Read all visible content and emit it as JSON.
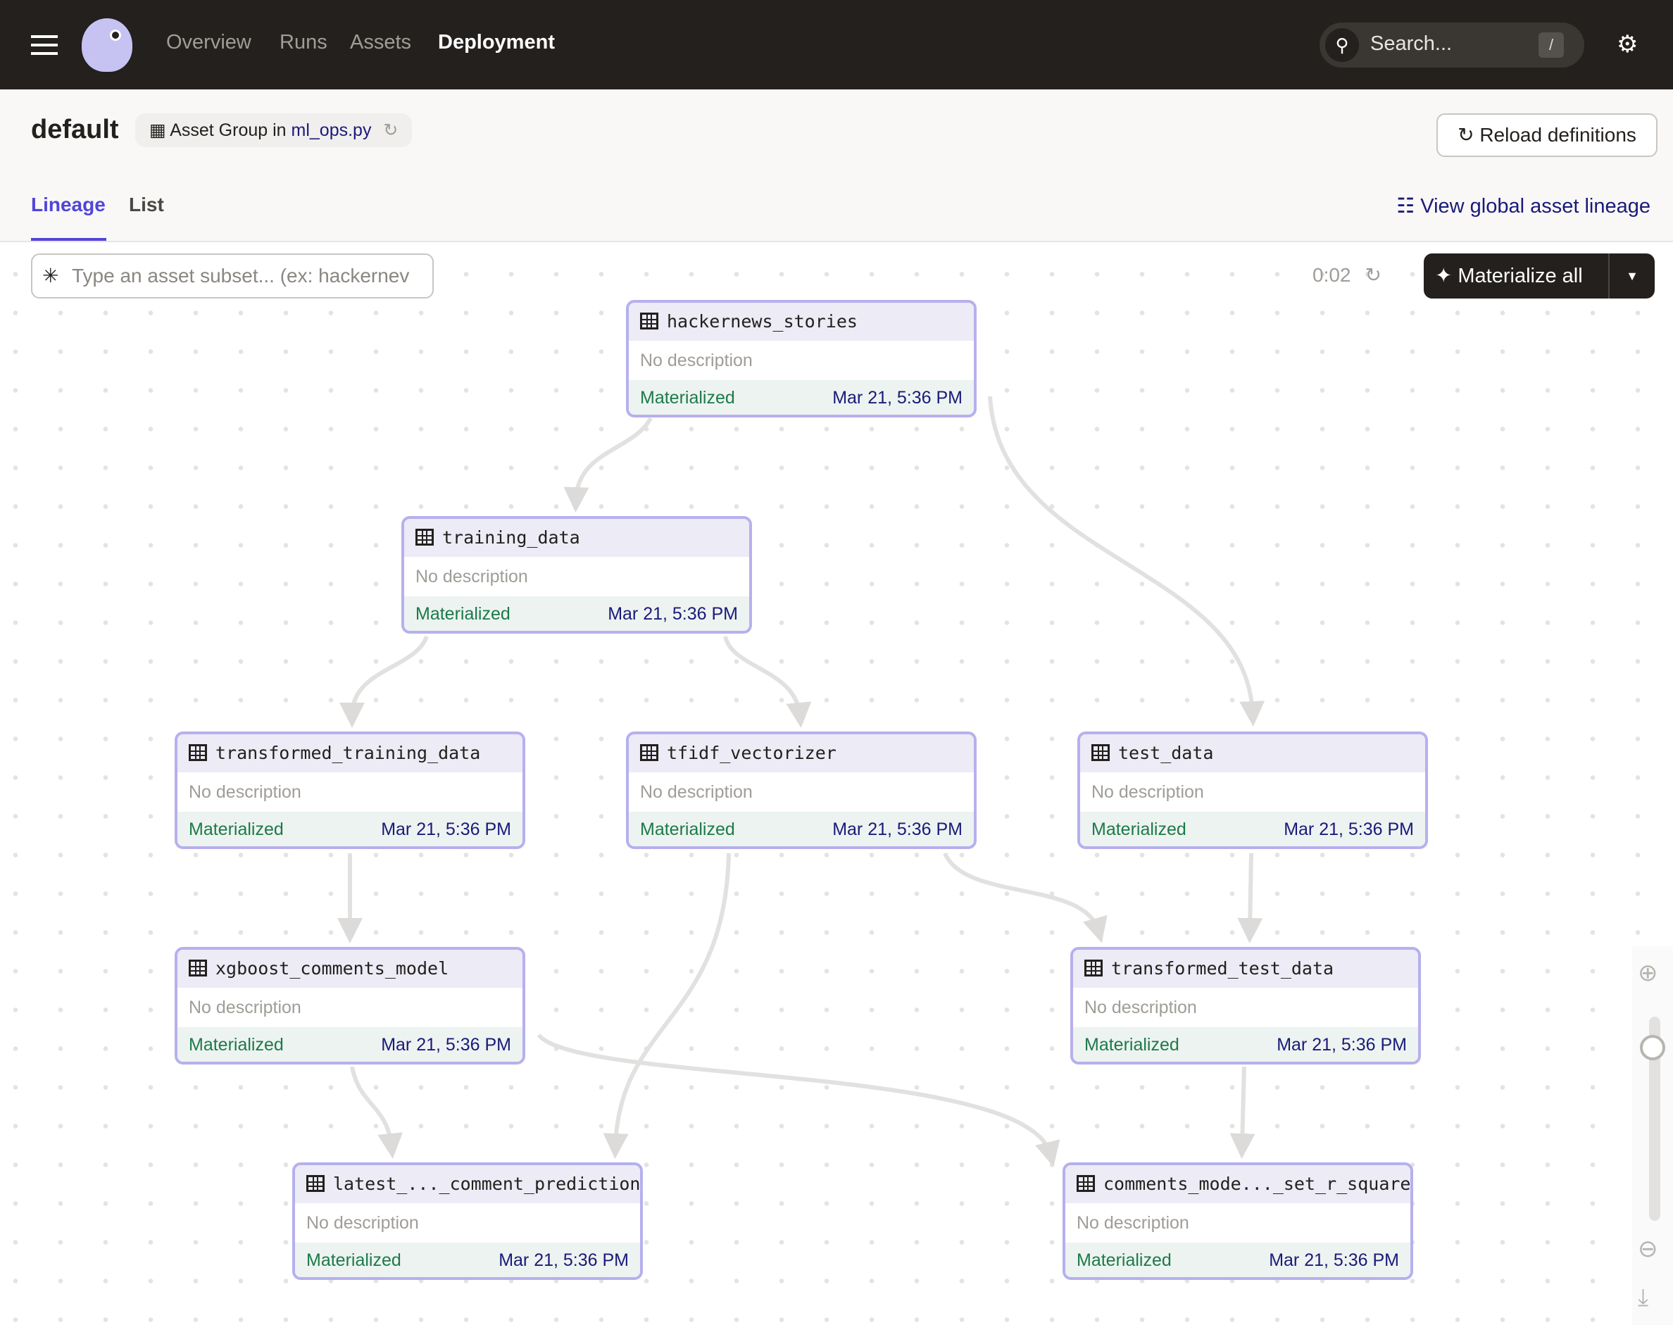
{
  "topbar": {
    "nav": [
      "Overview",
      "Runs",
      "Assets",
      "Deployment"
    ],
    "active": "Deployment",
    "search_placeholder": "Search...",
    "search_shortcut": "/"
  },
  "header": {
    "title": "default",
    "group_prefix": "Asset Group in",
    "group_file": "ml_ops.py",
    "reload_label": "Reload definitions"
  },
  "tabs": [
    {
      "label": "Lineage",
      "active": true
    },
    {
      "label": "List",
      "active": false
    }
  ],
  "global_lineage_label": "View global asset lineage",
  "toolbar": {
    "subset_placeholder": "Type an asset subset... (ex: hackernev",
    "timer": "0:02",
    "materialize_label": "Materialize all"
  },
  "colors": {
    "accent": "#5145d9",
    "node_border": "#b6b0ee",
    "materialized": "#1c7a4a",
    "timestamp": "#1a1a7a",
    "topbar": "#23201d"
  },
  "nodes": [
    {
      "name": "hackernews_stories",
      "description": "No description",
      "status": "Materialized",
      "timestamp": "Mar 21, 5:36 PM"
    },
    {
      "name": "training_data",
      "description": "No description",
      "status": "Materialized",
      "timestamp": "Mar 21, 5:36 PM"
    },
    {
      "name": "transformed_training_data",
      "description": "No description",
      "status": "Materialized",
      "timestamp": "Mar 21, 5:36 PM"
    },
    {
      "name": "tfidf_vectorizer",
      "description": "No description",
      "status": "Materialized",
      "timestamp": "Mar 21, 5:36 PM"
    },
    {
      "name": "test_data",
      "description": "No description",
      "status": "Materialized",
      "timestamp": "Mar 21, 5:36 PM"
    },
    {
      "name": "xgboost_comments_model",
      "description": "No description",
      "status": "Materialized",
      "timestamp": "Mar 21, 5:36 PM"
    },
    {
      "name": "transformed_test_data",
      "description": "No description",
      "status": "Materialized",
      "timestamp": "Mar 21, 5:36 PM"
    },
    {
      "name": "latest_..._comment_predictions",
      "description": "No description",
      "status": "Materialized",
      "timestamp": "Mar 21, 5:36 PM"
    },
    {
      "name": "comments_mode..._set_r_squared",
      "description": "No description",
      "status": "Materialized",
      "timestamp": "Mar 21, 5:36 PM"
    }
  ],
  "edges": [
    [
      "hackernews_stories",
      "training_data"
    ],
    [
      "hackernews_stories",
      "test_data"
    ],
    [
      "training_data",
      "transformed_training_data"
    ],
    [
      "training_data",
      "tfidf_vectorizer"
    ],
    [
      "transformed_training_data",
      "xgboost_comments_model"
    ],
    [
      "tfidf_vectorizer",
      "latest_..._comment_predictions"
    ],
    [
      "tfidf_vectorizer",
      "transformed_test_data"
    ],
    [
      "test_data",
      "transformed_test_data"
    ],
    [
      "xgboost_comments_model",
      "latest_..._comment_predictions"
    ],
    [
      "xgboost_comments_model",
      "comments_mode..._set_r_squared"
    ],
    [
      "transformed_test_data",
      "comments_mode..._set_r_squared"
    ]
  ],
  "zoom_level": 0.85
}
